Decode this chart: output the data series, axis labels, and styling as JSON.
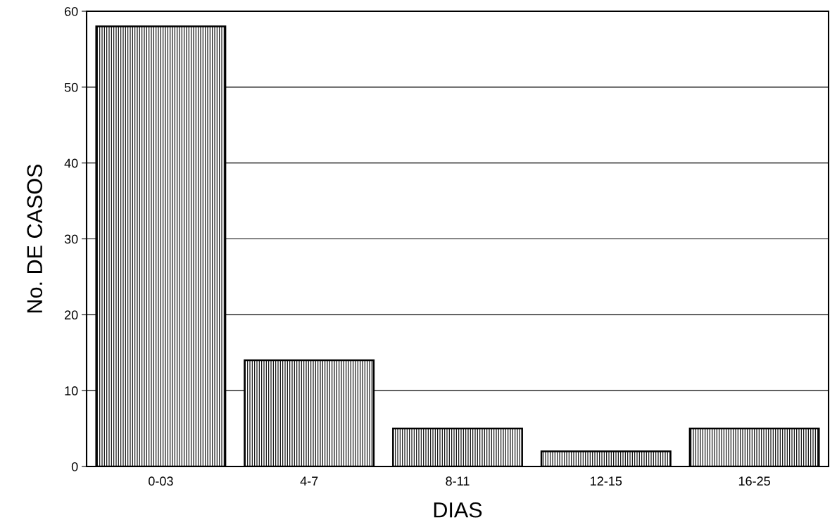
{
  "chart_data": {
    "type": "bar",
    "xlabel": "DIAS",
    "ylabel": "No. DE CASOS",
    "categories": [
      "0-03",
      "4-7",
      "8-11",
      "12-15",
      "16-25"
    ],
    "values": [
      58,
      14,
      5,
      2,
      5
    ],
    "color": "#000000",
    "ylim": [
      0,
      60
    ],
    "yticks": [
      0,
      10,
      20,
      30,
      40,
      50,
      60
    ],
    "grid": "y"
  }
}
